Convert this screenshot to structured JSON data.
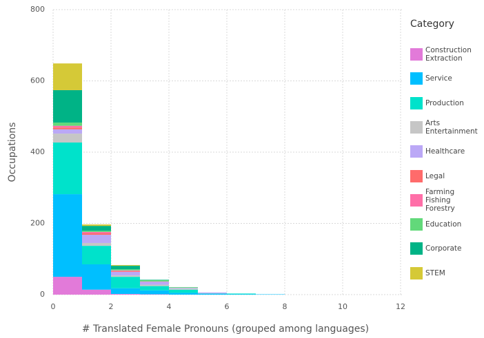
{
  "chart_data": {
    "type": "histogram",
    "xlabel": "# Translated Female Pronouns (grouped among languages)",
    "ylabel": "Occupations",
    "legend_title": "Category",
    "bins": [
      0,
      1,
      2,
      3,
      4,
      5,
      6,
      7,
      8,
      9,
      10,
      11,
      12
    ],
    "series": [
      {
        "name": "Construction\nExtraction",
        "color": "#e27ad9",
        "values": [
          50,
          14,
          2,
          1,
          0,
          0,
          0,
          0,
          0,
          0,
          0,
          0
        ]
      },
      {
        "name": "Service",
        "color": "#00bfff",
        "values": [
          232,
          71,
          16,
          11,
          5,
          2,
          1,
          1,
          0,
          0,
          0,
          0
        ]
      },
      {
        "name": "Production",
        "color": "#00e2cb",
        "values": [
          145,
          52,
          32,
          12,
          9,
          1,
          2,
          0,
          0,
          0,
          0,
          0
        ]
      },
      {
        "name": "Arts\nEntertainment",
        "color": "#c6c6c6",
        "values": [
          25,
          8,
          4,
          4,
          3,
          0,
          0,
          0,
          0,
          0,
          0,
          0
        ]
      },
      {
        "name": "Healthcare",
        "color": "#bba8f6",
        "values": [
          12,
          23,
          10,
          8,
          2,
          3,
          0,
          0,
          0,
          0,
          0,
          0
        ]
      },
      {
        "name": "Legal",
        "color": "#ff6b6b",
        "values": [
          5,
          4,
          2,
          0,
          0,
          0,
          0,
          0,
          0,
          0,
          0,
          0
        ]
      },
      {
        "name": "Farming\nFishing\nForestry",
        "color": "#ff6fa8",
        "values": [
          5,
          4,
          2,
          1,
          0,
          0,
          0,
          0,
          0,
          0,
          0,
          0
        ]
      },
      {
        "name": "Education",
        "color": "#62d97a",
        "values": [
          9,
          3,
          3,
          4,
          2,
          0,
          0,
          0,
          0,
          0,
          0,
          0
        ]
      },
      {
        "name": "Corporate",
        "color": "#00b386",
        "values": [
          91,
          14,
          10,
          1,
          0,
          0,
          0,
          0,
          0,
          0,
          0,
          0
        ]
      },
      {
        "name": "STEM",
        "color": "#d5c937",
        "values": [
          75,
          4,
          2,
          0,
          0,
          0,
          0,
          0,
          0,
          0,
          0,
          0
        ]
      }
    ],
    "xlim": [
      0,
      12
    ],
    "xticks": [
      0,
      2,
      4,
      6,
      8,
      10,
      12
    ],
    "ylim": [
      0,
      800
    ],
    "yticks": [
      0,
      200,
      400,
      600,
      800
    ],
    "grid": true
  }
}
